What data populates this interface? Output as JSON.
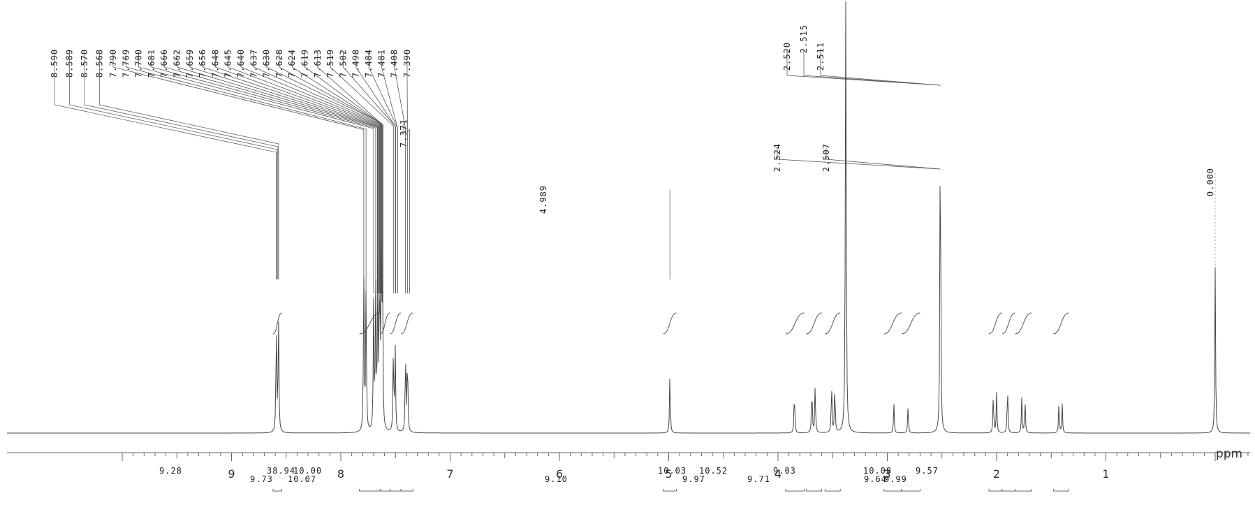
{
  "chart_data": {
    "type": "line",
    "title": "",
    "xlabel": "ppm",
    "ylabel": "",
    "xlim": [
      10.0,
      0.0
    ],
    "x_reversed": true,
    "grid": false,
    "x_ticks": [
      {
        "value": 9,
        "label": "9"
      },
      {
        "value": 8,
        "label": "8"
      },
      {
        "value": 7,
        "label": "7"
      },
      {
        "value": 6,
        "label": "6"
      },
      {
        "value": 5,
        "label": "5"
      },
      {
        "value": 4,
        "label": "4"
      },
      {
        "value": 3,
        "label": "3"
      },
      {
        "value": 2,
        "label": "2"
      },
      {
        "value": 1,
        "label": "1"
      }
    ],
    "peaks": [
      {
        "ppm": 8.59,
        "rel_height": 0.68
      },
      {
        "ppm": 8.57,
        "rel_height": 0.68
      },
      {
        "ppm": 7.79,
        "rel_height": 0.9
      },
      {
        "ppm": 7.769,
        "rel_height": 0.82
      },
      {
        "ppm": 7.7,
        "rel_height": 0.72
      },
      {
        "ppm": 7.681,
        "rel_height": 0.8
      },
      {
        "ppm": 7.662,
        "rel_height": 0.88
      },
      {
        "ppm": 7.645,
        "rel_height": 0.95
      },
      {
        "ppm": 7.63,
        "rel_height": 0.92
      },
      {
        "ppm": 7.619,
        "rel_height": 0.95
      },
      {
        "ppm": 7.519,
        "rel_height": 0.48
      },
      {
        "ppm": 7.502,
        "rel_height": 0.48
      },
      {
        "ppm": 7.408,
        "rel_height": 0.48
      },
      {
        "ppm": 7.39,
        "rel_height": 0.48
      },
      {
        "ppm": 4.989,
        "rel_height": 0.35
      },
      {
        "ppm": 3.85,
        "rel_height": 0.26
      },
      {
        "ppm": 3.69,
        "rel_height": 0.28
      },
      {
        "ppm": 3.66,
        "rel_height": 0.28
      },
      {
        "ppm": 3.51,
        "rel_height": 0.29
      },
      {
        "ppm": 3.48,
        "rel_height": 0.29
      },
      {
        "ppm": 3.38,
        "rel_height": 3.2
      },
      {
        "ppm": 2.94,
        "rel_height": 0.17
      },
      {
        "ppm": 2.81,
        "rel_height": 0.16
      },
      {
        "ppm": 2.515,
        "rel_height": 2.0
      },
      {
        "ppm": 2.03,
        "rel_height": 0.23
      },
      {
        "ppm": 2.0,
        "rel_height": 0.23
      },
      {
        "ppm": 1.9,
        "rel_height": 0.28
      },
      {
        "ppm": 1.77,
        "rel_height": 0.2
      },
      {
        "ppm": 1.74,
        "rel_height": 0.2
      },
      {
        "ppm": 1.43,
        "rel_height": 0.17
      },
      {
        "ppm": 1.4,
        "rel_height": 0.17
      },
      {
        "ppm": 0.0,
        "rel_height": 0.95
      }
    ],
    "peak_labels": [
      {
        "group": "g1",
        "labels": [
          "8.590",
          "8.589",
          "8.570",
          "8.568"
        ]
      },
      {
        "group": "g2",
        "labels": [
          "7.790",
          "7.769",
          "7.700",
          "7.681",
          "7.666",
          "7.662",
          "7.659",
          "7.656",
          "7.648",
          "7.645",
          "7.640",
          "7.637",
          "7.630",
          "7.628",
          "7.624",
          "7.619",
          "7.613",
          "7.519",
          "7.502",
          "7.498",
          "7.484",
          "7.481",
          "7.408",
          "7.390",
          "7.371"
        ]
      },
      {
        "group": "g3",
        "labels": [
          "4.989"
        ]
      },
      {
        "group": "g4",
        "labels": [
          "2.520",
          "2.515",
          "2.511"
        ]
      },
      {
        "group": "g5",
        "labels": [
          "2.524",
          "2.507"
        ]
      },
      {
        "group": "g6",
        "labels": [
          "0.000"
        ]
      }
    ],
    "integrals": [
      {
        "range": [
          8.62,
          8.54
        ],
        "value_label": "9.28"
      },
      {
        "range": [
          7.83,
          7.64
        ],
        "value_label": "9.73"
      },
      {
        "range": [
          7.64,
          7.55
        ],
        "value_label": "38.94"
      },
      {
        "range": [
          7.55,
          7.45
        ],
        "value_label": "10.07"
      },
      {
        "range": [
          7.45,
          7.34
        ],
        "value_label": "10.00"
      },
      {
        "range": [
          5.05,
          4.93
        ],
        "value_label": "9.10"
      },
      {
        "range": [
          3.93,
          3.76
        ],
        "value_label": "10.03"
      },
      {
        "range": [
          3.74,
          3.6
        ],
        "value_label": "9.97"
      },
      {
        "range": [
          3.57,
          3.43
        ],
        "value_label": "10.52"
      },
      {
        "range": [
          3.03,
          2.87
        ],
        "value_label": "9.71"
      },
      {
        "range": [
          2.87,
          2.7
        ],
        "value_label": "9.03"
      },
      {
        "range": [
          2.07,
          1.95
        ],
        "value_label": "10.08"
      },
      {
        "range": [
          1.95,
          1.83
        ],
        "value_label": "9.64"
      },
      {
        "range": [
          1.83,
          1.68
        ],
        "value_label": "9.99"
      },
      {
        "range": [
          1.48,
          1.34
        ],
        "value_label": "9.57"
      }
    ]
  }
}
